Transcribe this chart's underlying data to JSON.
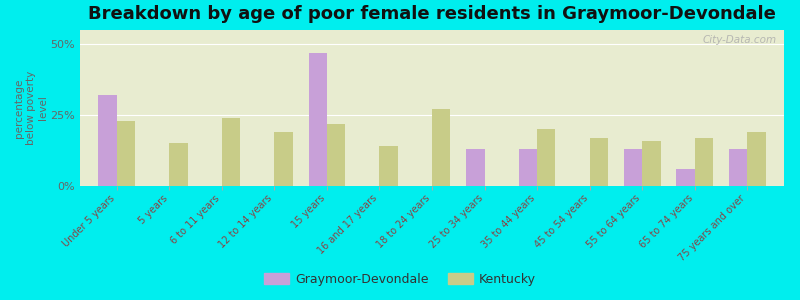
{
  "title": "Breakdown by age of poor female residents in Graymoor-Devondale",
  "categories": [
    "Under 5 years",
    "5 years",
    "6 to 11 years",
    "12 to 14 years",
    "15 years",
    "16 and 17 years",
    "18 to 24 years",
    "25 to 34 years",
    "35 to 44 years",
    "45 to 54 years",
    "55 to 64 years",
    "65 to 74 years",
    "75 years and over"
  ],
  "graymoor_values": [
    32,
    0,
    0,
    0,
    47,
    0,
    0,
    13,
    13,
    0,
    13,
    6,
    13
  ],
  "kentucky_values": [
    23,
    15,
    24,
    19,
    22,
    14,
    27,
    0,
    20,
    17,
    16,
    17,
    19
  ],
  "graymoor_color": "#c8a0d8",
  "kentucky_color": "#c8cc88",
  "figure_bg_color": "#00eeee",
  "plot_bg_color": "#e8ecd0",
  "ylabel": "percentage\nbelow poverty\nlevel",
  "ylim": [
    0,
    55
  ],
  "yticks": [
    0,
    25,
    50
  ],
  "ytick_labels": [
    "0%",
    "25%",
    "50%"
  ],
  "legend_graymoor": "Graymoor-Devondale",
  "legend_kentucky": "Kentucky",
  "bar_width": 0.35,
  "title_fontsize": 13,
  "watermark": "City-Data.com",
  "tick_label_color": "#884444",
  "axis_label_color": "#666666",
  "ytick_label_color": "#666666"
}
